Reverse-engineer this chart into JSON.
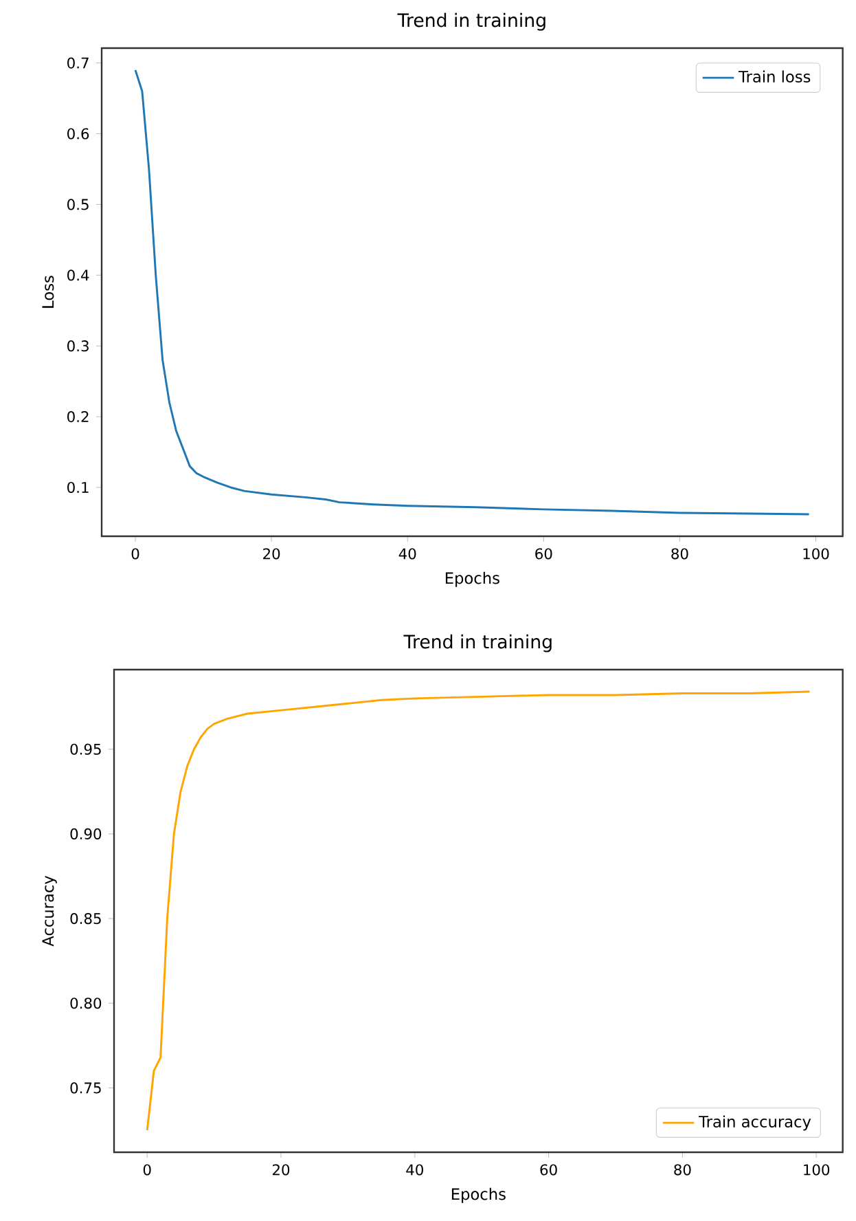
{
  "chart_data": [
    {
      "type": "line",
      "title": "Trend in training",
      "xlabel": "Epochs",
      "ylabel": "Loss",
      "x": [
        0,
        1,
        2,
        3,
        4,
        5,
        6,
        7,
        8,
        9,
        10,
        12,
        14,
        16,
        20,
        25,
        28,
        30,
        35,
        40,
        50,
        60,
        70,
        80,
        90,
        99
      ],
      "series": [
        {
          "name": "Train loss",
          "color": "#1f77b4",
          "values": [
            0.69,
            0.66,
            0.55,
            0.4,
            0.28,
            0.22,
            0.18,
            0.155,
            0.13,
            0.12,
            0.115,
            0.107,
            0.1,
            0.095,
            0.09,
            0.086,
            0.083,
            0.079,
            0.076,
            0.074,
            0.072,
            0.069,
            0.067,
            0.064,
            0.063,
            0.062
          ]
        }
      ],
      "xlim": [
        -4.95,
        103.95
      ],
      "ylim": [
        0.031,
        0.721
      ],
      "xticks": [
        0,
        20,
        40,
        60,
        80,
        100
      ],
      "yticks": [
        0.1,
        0.2,
        0.3,
        0.4,
        0.5,
        0.6,
        0.7
      ],
      "legend": "top right"
    },
    {
      "type": "line",
      "title": "Trend in training",
      "xlabel": "Epochs",
      "ylabel": "Accuracy",
      "x": [
        0,
        1,
        2,
        3,
        4,
        5,
        6,
        7,
        8,
        9,
        10,
        12,
        15,
        20,
        25,
        30,
        35,
        40,
        50,
        60,
        70,
        80,
        90,
        99
      ],
      "series": [
        {
          "name": "Train accuracy",
          "color": "#ffa500",
          "values": [
            0.725,
            0.76,
            0.768,
            0.85,
            0.9,
            0.925,
            0.94,
            0.95,
            0.957,
            0.962,
            0.965,
            0.968,
            0.971,
            0.973,
            0.975,
            0.977,
            0.979,
            0.98,
            0.981,
            0.982,
            0.982,
            0.983,
            0.983,
            0.984
          ]
        }
      ],
      "xlim": [
        -4.95,
        103.95
      ],
      "ylim": [
        0.712,
        0.997
      ],
      "xticks": [
        0,
        20,
        40,
        60,
        80,
        100
      ],
      "yticks": [
        {
          "value": 0.75,
          "label": "0.75"
        },
        {
          "value": 0.8,
          "label": "0.80"
        },
        {
          "value": 0.85,
          "label": "0.85"
        },
        {
          "value": 0.9,
          "label": "0.90"
        },
        {
          "value": 0.95,
          "label": "0.95"
        }
      ],
      "legend": "bottom right"
    }
  ]
}
